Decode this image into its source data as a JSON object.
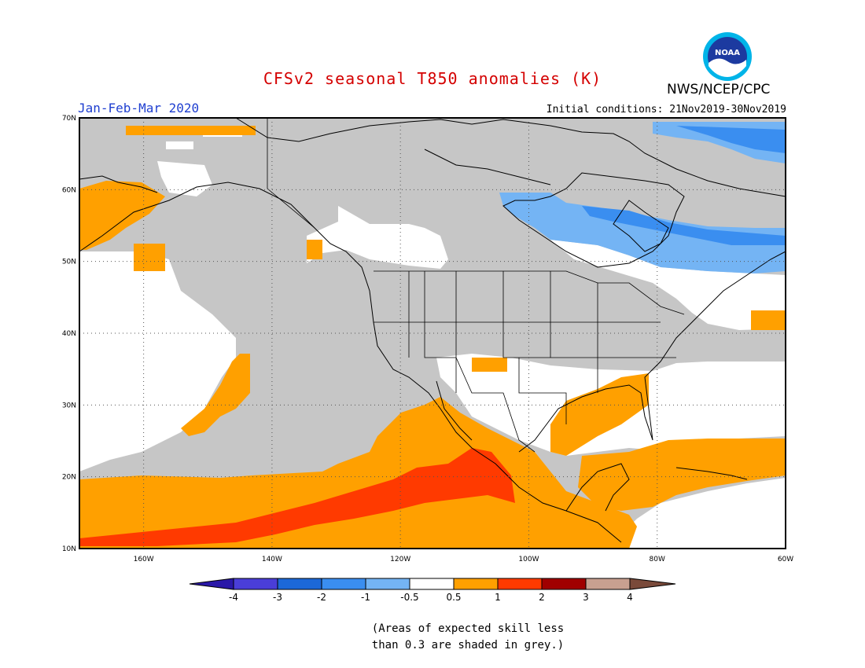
{
  "title": "CFSv2 seasonal T850 anomalies (K)",
  "season": "Jan-Feb-Mar 2020",
  "initial_conditions": "Initial conditions: 21Nov2019-30Nov2019",
  "agency": "NWS/NCEP/CPC",
  "logo_text": "NOAA",
  "map": {
    "region": "North America and eastern Pacific",
    "lon_range": [
      -170,
      -60
    ],
    "lat_range": [
      10,
      70
    ],
    "lat_ticks": [
      "70N",
      "60N",
      "50N",
      "40N",
      "30N",
      "20N",
      "10N"
    ],
    "lon_ticks": [
      "160W",
      "140W",
      "120W",
      "100W",
      "80W",
      "60W"
    ],
    "grid": "dotted",
    "colors": {
      "grey_low_skill": "#c6c6c6",
      "neutral": "#ffffff",
      "cool_-1_-0.5": "#74b4f4",
      "cool_-2_-1": "#3a8ef0",
      "warm_0.5_1": "#ffa000",
      "warm_1_2": "#ff3a00"
    }
  },
  "legend": {
    "labels": [
      "-4",
      "-3",
      "-2",
      "-1",
      "-0.5",
      "0.5",
      "1",
      "2",
      "3",
      "4"
    ],
    "colors": [
      "#2a18a8",
      "#4a3ed8",
      "#1c68d8",
      "#3a8ef0",
      "#74b4f4",
      "#ffffff",
      "#ffa000",
      "#ff3a00",
      "#a00000",
      "#c8a090",
      "#7a4a3a"
    ]
  },
  "note_line1": "(Areas of expected skill less",
  "note_line2": "than 0.3 are shaded in grey.)"
}
